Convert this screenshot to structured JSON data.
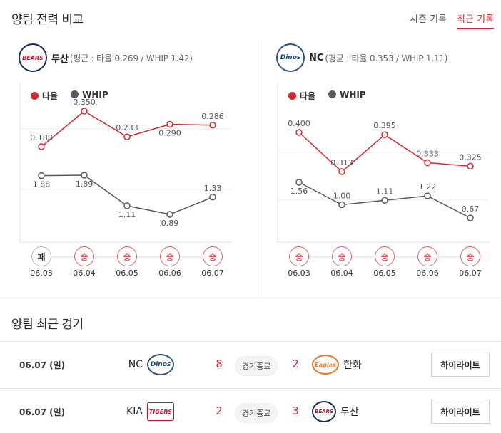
{
  "section_compare": {
    "title": "양팀 전력 비교"
  },
  "tabs": [
    {
      "label": "시즌 기록",
      "active": false
    },
    {
      "label": "최근 기록",
      "active": true
    }
  ],
  "teams": [
    {
      "name": "두산",
      "logo_text": "BEARS",
      "avg_text": "(평균 : 타율 0.269 / WHIP 1.42)"
    },
    {
      "name": "NC",
      "logo_text": "Dinos",
      "avg_text": "(평균 : 타율 0.353 / WHIP 1.11)"
    }
  ],
  "legend": {
    "avg": "타율",
    "whip": "WHIP"
  },
  "colors": {
    "avg": "#d6242f",
    "whip": "#555a60",
    "accent": "#d6242f"
  },
  "chart_data": [
    {
      "type": "line",
      "team": "두산",
      "x": [
        "06.03",
        "06.04",
        "06.05",
        "06.06",
        "06.07"
      ],
      "series": [
        {
          "name": "타율",
          "values": [
            0.188,
            0.35,
            0.233,
            0.29,
            0.286
          ],
          "labels": [
            "0.188",
            "0.350",
            "0.233",
            "0.290",
            "0.286"
          ]
        },
        {
          "name": "WHIP",
          "values": [
            1.88,
            1.89,
            1.11,
            0.89,
            1.33
          ],
          "labels": [
            "1.88",
            "1.89",
            "1.11",
            "0.89",
            "1.33"
          ]
        }
      ],
      "results": [
        "패",
        "승",
        "승",
        "승",
        "승"
      ]
    },
    {
      "type": "line",
      "team": "NC",
      "x": [
        "06.03",
        "06.04",
        "06.05",
        "06.06",
        "06.07"
      ],
      "series": [
        {
          "name": "타율",
          "values": [
            0.4,
            0.313,
            0.395,
            0.333,
            0.325
          ],
          "labels": [
            "0.400",
            "0.313",
            "0.395",
            "0.333",
            "0.325"
          ]
        },
        {
          "name": "WHIP",
          "values": [
            1.56,
            1.0,
            1.11,
            1.22,
            0.67
          ],
          "labels": [
            "1.56",
            "1.00",
            "1.11",
            "1.22",
            "0.67"
          ]
        }
      ],
      "results": [
        "승",
        "승",
        "승",
        "승",
        "승"
      ]
    }
  ],
  "section_recent": {
    "title": "양팀 최근 경기"
  },
  "games": [
    {
      "date": "06.07 (일)",
      "home": "NC",
      "home_logo": "Dinos",
      "home_score": "8",
      "status": "경기종료",
      "away_score": "2",
      "away": "한화",
      "away_logo": "Eagles",
      "highlight": "하이라이트"
    },
    {
      "date": "06.07 (일)",
      "home": "KIA",
      "home_logo": "TIGERS",
      "home_score": "2",
      "status": "경기종료",
      "away_score": "3",
      "away": "두산",
      "away_logo": "BEARS",
      "highlight": "하이라이트"
    }
  ]
}
